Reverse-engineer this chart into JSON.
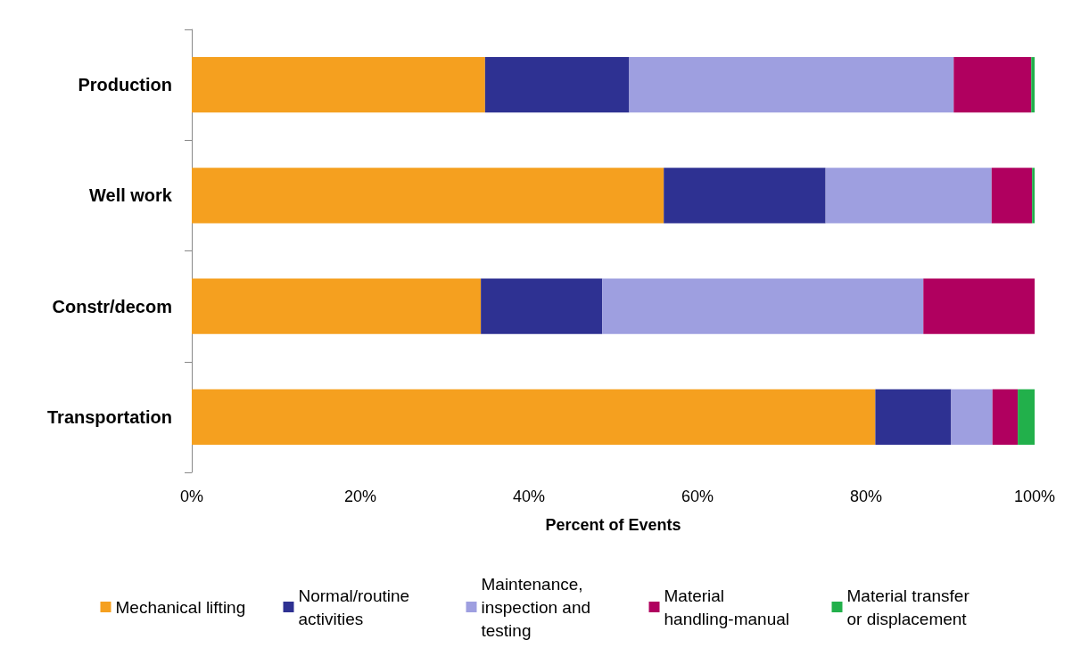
{
  "chart_data": {
    "type": "bar",
    "orientation": "horizontal",
    "stacked": true,
    "xlabel": "Percent of Events",
    "categories": [
      "Production",
      "Well work",
      "Constr/decom",
      "Transportation"
    ],
    "series": [
      {
        "name": "Mechanical lifting",
        "color": "#f5a01f",
        "values": [
          34.8,
          56.0,
          34.3,
          81.1
        ]
      },
      {
        "name": "Normal/routine activities",
        "color": "#2e3192",
        "values": [
          17.1,
          19.2,
          14.4,
          9.0
        ]
      },
      {
        "name": "Maintenance, inspection and testing",
        "color": "#9e9fe0",
        "values": [
          38.5,
          19.7,
          38.1,
          4.9
        ]
      },
      {
        "name": "Material handling-manual",
        "color": "#b0005f",
        "values": [
          9.2,
          4.8,
          13.2,
          3.0
        ]
      },
      {
        "name": "Material transfer or displacement",
        "color": "#22b04b",
        "values": [
          0.4,
          0.3,
          0,
          2.0
        ]
      }
    ],
    "xlim": [
      0,
      100
    ],
    "xticks": [
      {
        "value": 0,
        "label": "0%"
      },
      {
        "value": 20,
        "label": "20%"
      },
      {
        "value": 40,
        "label": "40%"
      },
      {
        "value": 60,
        "label": "60%"
      },
      {
        "value": 80,
        "label": "80%"
      },
      {
        "value": 100,
        "label": "100%"
      }
    ],
    "grid": false,
    "legend": "bottom"
  }
}
